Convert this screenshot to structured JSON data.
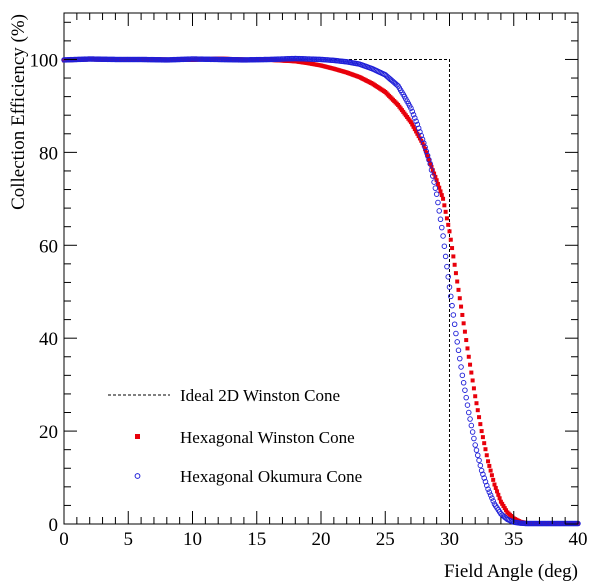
{
  "chart_data": {
    "type": "scatter",
    "xlabel": "Field Angle (deg)",
    "ylabel": "Collection Efficiency (%)",
    "xlim": [
      0,
      40
    ],
    "ylim": [
      0,
      110
    ],
    "xticks": [
      0,
      5,
      10,
      15,
      20,
      25,
      30,
      35,
      40
    ],
    "yticks": [
      0,
      20,
      40,
      60,
      80,
      100
    ],
    "grid": false,
    "legend_position": "bottom-left",
    "series": [
      {
        "name": "Ideal 2D Winston Cone",
        "style": "dashed-line",
        "color": "#000000",
        "x": [
          0,
          30,
          30
        ],
        "y": [
          100,
          100,
          0
        ]
      },
      {
        "name": "Hexagonal Winston Cone",
        "style": "filled-square",
        "color": "#e8000b",
        "x": [
          0,
          2,
          4,
          6,
          8,
          10,
          12,
          14,
          16,
          18,
          19,
          20,
          21,
          22,
          23,
          24,
          25,
          26,
          27,
          28,
          28.5,
          29,
          29.5,
          30,
          30.5,
          31,
          31.5,
          32,
          32.5,
          33,
          33.5,
          34,
          34.5,
          35,
          35.5,
          36,
          37,
          38,
          39,
          40
        ],
        "y": [
          99.8,
          100,
          99.9,
          100.1,
          100,
          99.9,
          100.2,
          100,
          99.9,
          99.6,
          99.2,
          98.7,
          98,
          97.2,
          96.2,
          94.8,
          93,
          90.2,
          86.5,
          81.5,
          77.6,
          74,
          70,
          63,
          54,
          45,
          36,
          27.5,
          20,
          13.5,
          8.5,
          4.8,
          2.5,
          1.2,
          0.5,
          0.2,
          0.1,
          0.1,
          0.1,
          0.1
        ]
      },
      {
        "name": "Hexagonal Okumura Cone",
        "style": "open-circle",
        "color": "#1f1fd8",
        "x": [
          0,
          2,
          4,
          6,
          8,
          10,
          12,
          14,
          16,
          18,
          20,
          21,
          22,
          23,
          24,
          25,
          25.5,
          26,
          26.5,
          27,
          27.5,
          28,
          28.5,
          29,
          29.5,
          30,
          30.5,
          31,
          31.5,
          32,
          32.5,
          33,
          33.5,
          34,
          34.5,
          35,
          35.5,
          36,
          37,
          38,
          39,
          40
        ],
        "y": [
          99.9,
          100.1,
          100,
          100,
          99.9,
          100.1,
          100,
          99.9,
          100,
          100.2,
          100,
          99.8,
          99.5,
          99,
          98,
          96.7,
          95.5,
          94.3,
          92,
          89.5,
          86,
          82,
          77.5,
          71,
          62,
          51,
          41,
          32,
          24,
          17,
          11.5,
          7.5,
          4.3,
          2.2,
          1,
          0.4,
          0.2,
          0.1,
          0.1,
          0.1,
          0.1,
          0.1
        ]
      }
    ]
  }
}
